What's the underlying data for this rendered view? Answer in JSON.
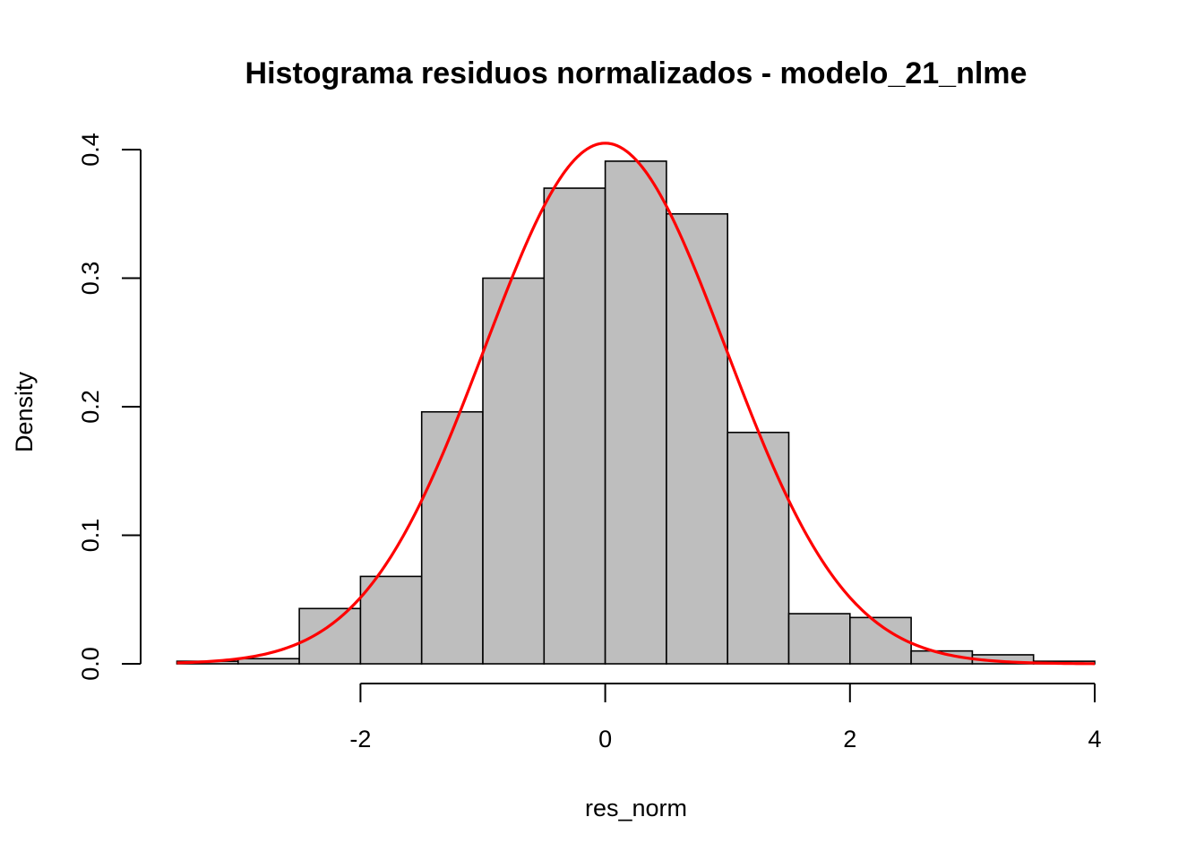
{
  "chart_data": {
    "type": "bar",
    "title": "Histograma residuos normalizados - modelo_21_nlme",
    "xlabel": "res_norm",
    "ylabel": "Density",
    "xlim": [
      -3.5,
      4.0
    ],
    "ylim": [
      0,
      0.4
    ],
    "x_ticks": [
      -2,
      0,
      2,
      4
    ],
    "x_tick_labels": [
      "-2",
      "0",
      "2",
      "4"
    ],
    "y_ticks": [
      0.0,
      0.1,
      0.2,
      0.3,
      0.4
    ],
    "y_tick_labels": [
      "0.0",
      "0.1",
      "0.2",
      "0.3",
      "0.4"
    ],
    "bin_edges": [
      -3.5,
      -3.0,
      -2.5,
      -2.0,
      -1.5,
      -1.0,
      -0.5,
      0.0,
      0.5,
      1.0,
      1.5,
      2.0,
      2.5,
      3.0,
      3.5,
      4.0
    ],
    "densities": [
      0.002,
      0.004,
      0.043,
      0.068,
      0.196,
      0.3,
      0.37,
      0.391,
      0.35,
      0.18,
      0.039,
      0.036,
      0.01,
      0.007,
      0.002
    ],
    "bar_fill": "#bebebe",
    "density_curve": {
      "type": "line",
      "distribution": "normal",
      "mean": 0.0,
      "sd": 0.985,
      "color": "#ff0000"
    },
    "grid": false
  }
}
